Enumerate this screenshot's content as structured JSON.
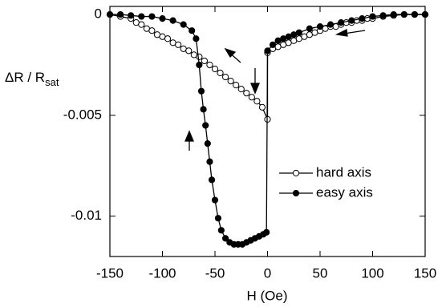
{
  "chart_data": {
    "type": "line",
    "x_label": "H (Oe)",
    "y_label": {
      "text": "ΔR / R",
      "subscript": "sat"
    },
    "xlim": [
      -150,
      150
    ],
    "ylim": [
      -0.012,
      0.0004
    ],
    "xticks": [
      -150,
      -100,
      -50,
      0,
      50,
      100,
      150
    ],
    "yticks": [
      0,
      -0.005,
      -0.01
    ],
    "legend": "lower right",
    "series": [
      {
        "name": "hard axis",
        "color": "#000000",
        "marker": "open",
        "x": [
          -150,
          -140,
          -130,
          -125,
          -120,
          -115,
          -110,
          -105,
          -100,
          -95,
          -90,
          -85,
          -80,
          -75,
          -70,
          -65,
          -60,
          -55,
          -50,
          -45,
          -40,
          -35,
          -30,
          -25,
          -20,
          -15,
          -10,
          -5,
          0,
          0,
          5,
          10,
          15,
          20,
          25,
          30,
          35,
          40,
          45,
          50,
          55,
          60,
          65,
          70,
          75,
          80,
          85,
          90,
          95,
          100,
          110,
          120,
          130,
          140,
          150
        ],
        "values": [
          0,
          -0.0001,
          -0.0002,
          -0.0004,
          -0.0005,
          -0.0007,
          -0.0008,
          -0.001,
          -0.0011,
          -0.0012,
          -0.0014,
          -0.0015,
          -0.0017,
          -0.0018,
          -0.002,
          -0.0021,
          -0.0023,
          -0.0025,
          -0.0027,
          -0.0029,
          -0.0031,
          -0.0033,
          -0.0035,
          -0.0037,
          -0.0039,
          -0.0041,
          -0.0043,
          -0.0046,
          -0.0052,
          -0.0019,
          -0.0017,
          -0.0016,
          -0.0015,
          -0.0014,
          -0.0013,
          -0.0012,
          -0.0011,
          -0.001,
          -0.0009,
          -0.0008,
          -0.0007,
          -0.0006,
          -0.0006,
          -0.0005,
          -0.0004,
          -0.0004,
          -0.0003,
          -0.0003,
          -0.0002,
          -0.0002,
          -0.0001,
          -5e-05,
          0,
          0,
          0
        ]
      },
      {
        "name": "easy axis",
        "color": "#000000",
        "marker": "filled",
        "x": [
          -150,
          -140,
          -130,
          -120,
          -110,
          -100,
          -90,
          -80,
          -72,
          -68,
          -65,
          -63,
          -61,
          -59,
          -57,
          -55,
          -53,
          -50,
          -47,
          -44,
          -40,
          -36,
          -32,
          -28,
          -24,
          -20,
          -16,
          -12,
          -8,
          -4,
          -1,
          0,
          5,
          10,
          15,
          20,
          25,
          30,
          40,
          50,
          60,
          70,
          80,
          90,
          100,
          110,
          120,
          130,
          140,
          150
        ],
        "values": [
          0,
          0,
          -5e-05,
          -0.0001,
          -0.0001,
          -0.0002,
          -0.0003,
          -0.0005,
          -0.0008,
          -0.0012,
          -0.0025,
          -0.0038,
          -0.0047,
          -0.0055,
          -0.0064,
          -0.0073,
          -0.0082,
          -0.0092,
          -0.0101,
          -0.0107,
          -0.0111,
          -0.0113,
          -0.0114,
          -0.0114,
          -0.0114,
          -0.0113,
          -0.0112,
          -0.0111,
          -0.011,
          -0.0109,
          -0.0108,
          -0.0018,
          -0.0015,
          -0.0013,
          -0.0012,
          -0.0011,
          -0.001,
          -0.0009,
          -0.0007,
          -0.0006,
          -0.0005,
          -0.0004,
          -0.0003,
          -0.0002,
          -0.0001,
          -5e-05,
          0,
          0,
          0,
          0
        ]
      }
    ]
  }
}
